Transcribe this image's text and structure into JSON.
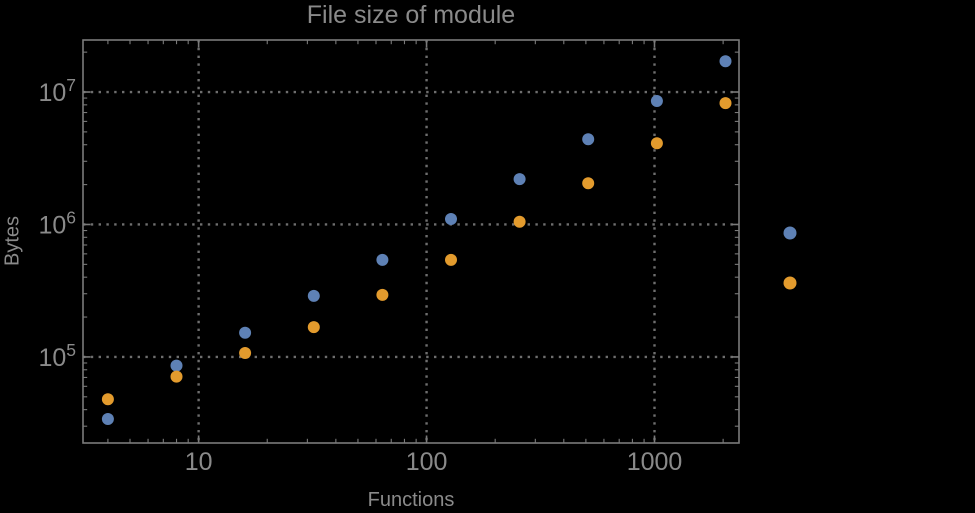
{
  "colors": {
    "background": "#000000",
    "frame": "#7a7a7a",
    "grid": "#6e6e6e",
    "text": "#8a8a8a",
    "series_blue": "#5E81B5",
    "series_orange": "#E39B2D"
  },
  "chart_data": {
    "type": "scatter",
    "title": "File size of module",
    "xlabel": "Functions",
    "ylabel": "Bytes",
    "x_scale": "log",
    "y_scale": "log",
    "xlim": [
      3.11,
      2348
    ],
    "ylim": [
      22400,
      24700000
    ],
    "grid": "dotted lines at decade ticks, frame with inward major/minor log ticks on all four sides",
    "x_ticks": [
      {
        "value": 10,
        "label": "10"
      },
      {
        "value": 100,
        "label": "100"
      },
      {
        "value": 1000,
        "label": "1000"
      }
    ],
    "y_ticks": [
      {
        "value": 100000,
        "base": "10",
        "exponent": "5"
      },
      {
        "value": 1000000,
        "base": "10",
        "exponent": "6"
      },
      {
        "value": 10000000,
        "base": "10",
        "exponent": "7"
      }
    ],
    "x": [
      4,
      8,
      16,
      32,
      64,
      128,
      256,
      512,
      1024,
      2048
    ],
    "series": [
      {
        "name": "blue",
        "color": "#5E81B5",
        "values": [
          34000,
          86000,
          152000,
          289000,
          540000,
          1100000,
          2200000,
          4400000,
          8550000,
          17100000
        ]
      },
      {
        "name": "orange",
        "color": "#E39B2D",
        "values": [
          48000,
          71000,
          107000,
          168000,
          294000,
          540000,
          1050000,
          2050000,
          4100000,
          8250000
        ]
      }
    ],
    "legend": {
      "position": "right-of-plot",
      "entries": [
        {
          "marker_color": "#5E81B5",
          "label": ""
        },
        {
          "marker_color": "#E39B2D",
          "label": ""
        }
      ]
    }
  }
}
